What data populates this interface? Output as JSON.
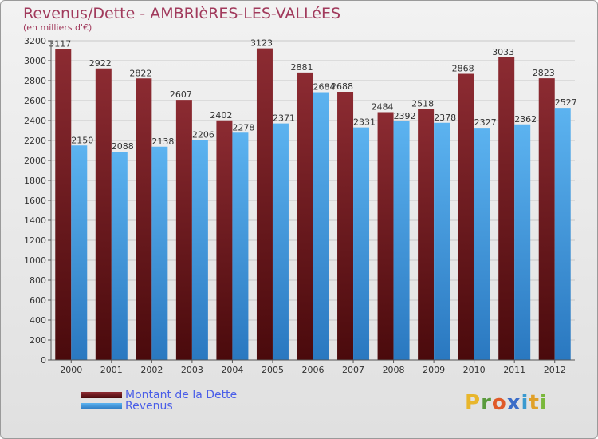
{
  "header": {
    "title": "Revenus/Dette - AMBRIèRES-LES-VALLéES",
    "subtitle": "(en milliers d'€)"
  },
  "legend": {
    "items": [
      {
        "label": "Montant de la Dette",
        "color": "#7b1f24"
      },
      {
        "label": "Revenus",
        "color": "#4aa3e8"
      }
    ]
  },
  "logo": {
    "letters": [
      "P",
      "r",
      "o",
      "x",
      "i",
      "t",
      "i"
    ],
    "colors": [
      "#e8b62c",
      "#5a9a3c",
      "#e05a28",
      "#3a6cc8",
      "#3a9ad0",
      "#e0a028",
      "#7ab83c"
    ]
  },
  "colors": {
    "debt_top": "#8c2b32",
    "debt_bottom": "#4a0a0c",
    "revenue_top": "#5cb3f0",
    "revenue_bottom": "#2a78c0",
    "grid": "#c8c8c8",
    "axis": "#555555"
  },
  "chart_data": {
    "type": "bar",
    "categories": [
      "2000",
      "2001",
      "2002",
      "2003",
      "2004",
      "2005",
      "2006",
      "2007",
      "2008",
      "2009",
      "2010",
      "2011",
      "2012"
    ],
    "series": [
      {
        "name": "Montant de la Dette",
        "values": [
          3117,
          2922,
          2822,
          2607,
          2402,
          3123,
          2881,
          2688,
          2484,
          2518,
          2868,
          3033,
          2823
        ]
      },
      {
        "name": "Revenus",
        "values": [
          2150,
          2088,
          2138,
          2206,
          2278,
          2371,
          2684,
          2331,
          2392,
          2378,
          2327,
          2362,
          2527
        ]
      }
    ],
    "yticks": [
      "0",
      "200",
      "400",
      "600",
      "800",
      "1000",
      "1200",
      "1400",
      "1600",
      "1800",
      "2000",
      "2200",
      "2400",
      "2600",
      "2800",
      "3000",
      "3200"
    ],
    "ylim": [
      0,
      3200
    ],
    "grid": true,
    "legend_position": "bottom-left"
  }
}
